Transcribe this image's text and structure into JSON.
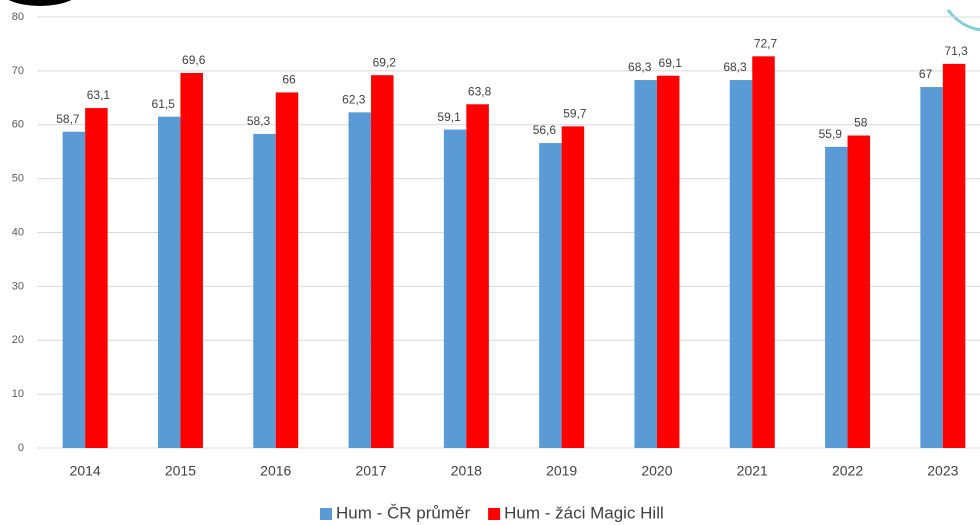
{
  "chart_data": {
    "type": "bar",
    "categories": [
      "2014",
      "2015",
      "2016",
      "2017",
      "2018",
      "2019",
      "2020",
      "2021",
      "2022",
      "2023"
    ],
    "series": [
      {
        "name": "Hum - ČR průměr",
        "color": "#5b9bd5",
        "values": [
          58.7,
          61.5,
          58.3,
          62.3,
          59.1,
          56.6,
          68.3,
          68.3,
          55.9,
          67
        ],
        "value_labels": [
          "58,7",
          "61,5",
          "58,3",
          "62,3",
          "59,1",
          "56,6",
          "68,3",
          "68,3",
          "55,9",
          "67"
        ]
      },
      {
        "name": "Hum - žáci Magic Hill",
        "color": "#ff0000",
        "values": [
          63.1,
          69.6,
          66,
          69.2,
          63.8,
          59.7,
          69.1,
          72.7,
          58,
          71.3
        ],
        "value_labels": [
          "63,1",
          "69,6",
          "66",
          "69,2",
          "63,8",
          "59,7",
          "69,1",
          "72,7",
          "58",
          "71,3"
        ]
      }
    ],
    "ylim": [
      0,
      80
    ],
    "yticks": [
      0,
      10,
      20,
      30,
      40,
      50,
      60,
      70,
      80
    ],
    "grid": true,
    "legend": "bottom"
  }
}
